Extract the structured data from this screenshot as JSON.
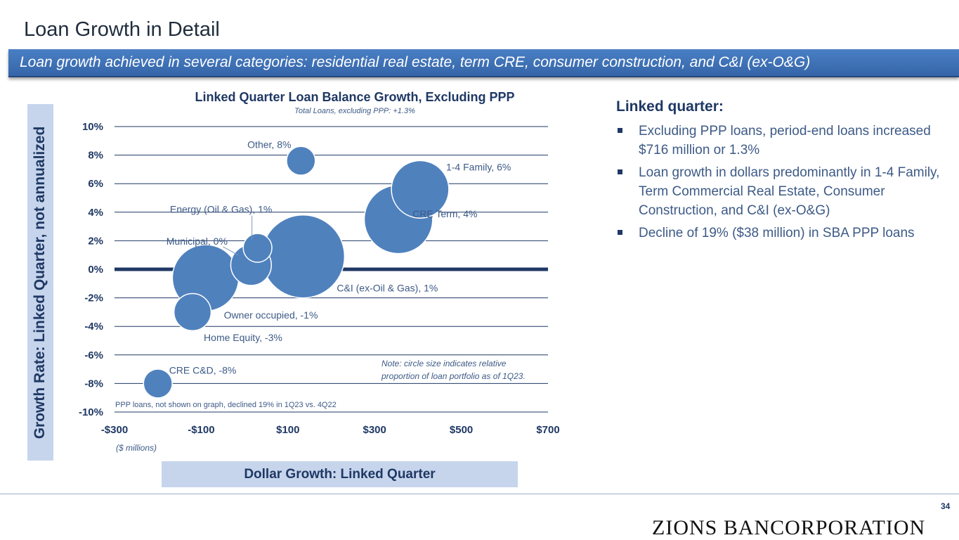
{
  "title": "Loan Growth in Detail",
  "banner": "Loan growth achieved in several categories: residential real estate, term CRE, consumer construction, and C&I (ex-O&G)",
  "chart_data": {
    "type": "scatter",
    "title": "Linked Quarter Loan Balance Growth, Excluding PPP",
    "subtitle": "Total Loans, excluding PPP: +1.3%",
    "xlabel": "Dollar Growth: Linked Quarter",
    "ylabel": "Growth Rate: Linked Quarter, not annualized",
    "x_units": "($ millions)",
    "xlim": [
      -300,
      700
    ],
    "ylim": [
      -10,
      10
    ],
    "x_ticks": [
      -300,
      -100,
      100,
      300,
      500,
      700
    ],
    "x_tick_labels": [
      "-$300",
      "-$100",
      "$100",
      "$300",
      "$500",
      "$700"
    ],
    "y_ticks": [
      10,
      8,
      6,
      4,
      2,
      0,
      -2,
      -4,
      -6,
      -8,
      -10
    ],
    "y_tick_labels": [
      "10%",
      "8%",
      "6%",
      "4%",
      "2%",
      "0%",
      "-2%",
      "-4%",
      "-6%",
      "-8%",
      "-10%"
    ],
    "note": "Note: circle size indicates relative proportion of loan portfolio as of 1Q23.",
    "footnote": "PPP loans, not shown on graph, declined 19% in 1Q23 vs. 4Q22",
    "points": [
      {
        "label": "Other, 8%",
        "x": 130,
        "y": 7.6,
        "size": 3
      },
      {
        "label": "1-4 Family, 6%",
        "x": 405,
        "y": 5.6,
        "size": 12
      },
      {
        "label": "CRE Term, 4%",
        "x": 355,
        "y": 3.5,
        "size": 17
      },
      {
        "label": "Energy (Oil & Gas), 1%",
        "x": 30,
        "y": 1.5,
        "size": 3
      },
      {
        "label": "Municipal, 0%",
        "x": 15,
        "y": 0.3,
        "size": 6
      },
      {
        "label": "C&I (ex-Oil & Gas), 1%",
        "x": 135,
        "y": 0.9,
        "size": 25
      },
      {
        "label": "Owner occupied, -1%",
        "x": -90,
        "y": -0.6,
        "size": 16
      },
      {
        "label": "Home Equity, -3%",
        "x": -120,
        "y": -3.0,
        "size": 5
      },
      {
        "label": "CRE C&D, -8%",
        "x": -200,
        "y": -8.0,
        "size": 3
      }
    ]
  },
  "side": {
    "heading": "Linked quarter:",
    "bullets": [
      "Excluding PPP loans, period-end loans increased $716 million or 1.3%",
      "Loan growth in dollars predominantly in 1-4 Family, Term Commercial Real Estate, Consumer Construction, and C&I (ex-O&G)",
      "Decline of 19% ($38 million) in SBA PPP loans"
    ]
  },
  "page_number": "34",
  "logo_text": "ZIONS BANCORPORATION",
  "colors": {
    "bubble": "#4f81bd",
    "bubble_stroke": "#ffffff",
    "grid": "#1f3864",
    "zero_line": "#1f3864",
    "text": "#1f3864",
    "label": "#3d5a86"
  }
}
